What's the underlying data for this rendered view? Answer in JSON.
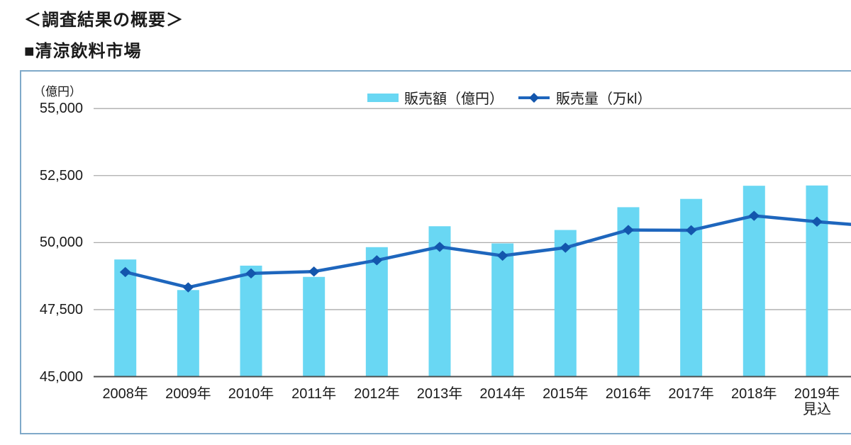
{
  "header": {
    "title": "＜調査結果の概要＞",
    "subtitle": "■清涼飲料市場"
  },
  "chart_data": {
    "type": "combo-bar-line",
    "title": "清涼飲料市場",
    "unit_label": "（億円）",
    "categories": [
      "2008年",
      "2009年",
      "2010年",
      "2011年",
      "2012年",
      "2013年",
      "2014年",
      "2015年",
      "2016年",
      "2017年",
      "2018年",
      "2019年"
    ],
    "last_category_note": "見込",
    "ylim": [
      45000,
      55000
    ],
    "yticks": [
      55000,
      52500,
      50000,
      47500,
      45000
    ],
    "ytick_labels": [
      "55,000",
      "52,500",
      "50,000",
      "47,500",
      "45,000"
    ],
    "grid": true,
    "legend_position": "top-center",
    "right_axis_note": "line plotted against secondary axis that is cropped out of the visible image",
    "series": [
      {
        "name": "販売額（億円）",
        "type": "bar",
        "unit": "億円",
        "axis": "left",
        "values": [
          49370,
          48230,
          49140,
          48720,
          49830,
          50610,
          49970,
          50470,
          51320,
          51630,
          52120,
          52130
        ]
      },
      {
        "name": "販売量（万kl）",
        "type": "line",
        "unit": "万kl",
        "axis": "right (cropped out of view)",
        "marker": "diamond",
        "values_plotted_on_left_axis_scale": [
          48900,
          48330,
          48850,
          48920,
          49340,
          49840,
          49510,
          49810,
          50470,
          50460,
          51000,
          50780
        ],
        "line_continues_past_right_crop": true,
        "right_edge_extension_value": 50555
      }
    ],
    "colors": {
      "bar": "#69d7f3",
      "line": "#1e66bd",
      "marker": "#1356ad",
      "grid": "#ababab",
      "axis": "#4d4d4d",
      "frame_border": "#7fa9c9",
      "text": "#1a1a1a"
    }
  }
}
